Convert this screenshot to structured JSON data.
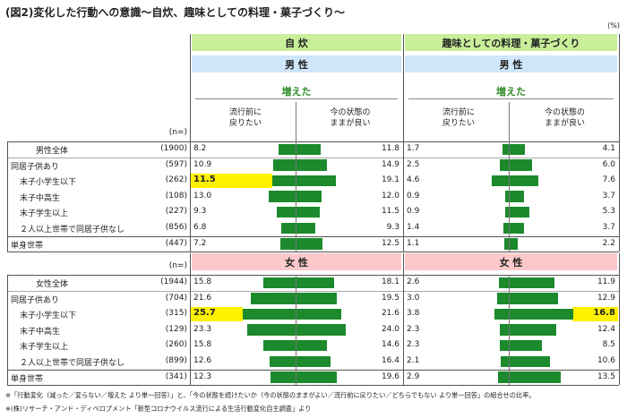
{
  "title": "(図2)変化した行動への意識～自炊、趣味としての料理・菓子づくり～",
  "unit": "(%)",
  "n_label": "(n=)",
  "increased_label": "増えた",
  "subheads": {
    "left": [
      "流行前に",
      "戻りたい"
    ],
    "right": [
      "今の状態の",
      "ままが良い"
    ]
  },
  "colors": {
    "bar": "#1c8a2c",
    "highlight": "#fff200",
    "panel_header": "#c9ef9b",
    "male_header": "#cfe6fb",
    "female_header": "#fbc9c9"
  },
  "chart_data": {
    "type": "bar",
    "panels": [
      "自 炊",
      "趣味としての料理・菓子づくり"
    ],
    "series_headings": [
      "流行前に戻りたい",
      "今の状態のままが良い"
    ],
    "groups": [
      {
        "name": "男 性",
        "rows": [
          {
            "label": "男性全体",
            "n": "(1900)",
            "cook": [
              8.2,
              11.8
            ],
            "hobby": [
              1.7,
              4.1
            ]
          },
          {
            "label": "同居子供あり",
            "n": "(597)",
            "cook": [
              10.9,
              14.9
            ],
            "hobby": [
              2.5,
              6.0
            ]
          },
          {
            "label": "末子小学生以下",
            "n": "(262)",
            "cook": [
              11.5,
              19.1
            ],
            "hobby": [
              4.6,
              7.6
            ],
            "highlight": "cook_left"
          },
          {
            "label": "末子中高生",
            "n": "(108)",
            "cook": [
              13.0,
              12.0
            ],
            "hobby": [
              0.9,
              3.7
            ]
          },
          {
            "label": "末子学生以上",
            "n": "(227)",
            "cook": [
              9.3,
              11.5
            ],
            "hobby": [
              0.9,
              5.3
            ]
          },
          {
            "label": "２人以上世帯で同居子供なし",
            "n": "(856)",
            "cook": [
              6.8,
              9.3
            ],
            "hobby": [
              1.4,
              3.7
            ]
          },
          {
            "label": "単身世帯",
            "n": "(447)",
            "cook": [
              7.2,
              12.5
            ],
            "hobby": [
              1.1,
              2.2
            ]
          }
        ]
      },
      {
        "name": "女 性",
        "rows": [
          {
            "label": "女性全体",
            "n": "(1944)",
            "cook": [
              15.8,
              18.1
            ],
            "hobby": [
              2.6,
              11.9
            ]
          },
          {
            "label": "同居子供あり",
            "n": "(704)",
            "cook": [
              21.6,
              19.5
            ],
            "hobby": [
              3.0,
              12.9
            ]
          },
          {
            "label": "末子小学生以下",
            "n": "(315)",
            "cook": [
              25.7,
              21.6
            ],
            "hobby": [
              3.8,
              16.8
            ],
            "highlight": "cook_left,hobby_right"
          },
          {
            "label": "末子中高生",
            "n": "(129)",
            "cook": [
              23.3,
              24.0
            ],
            "hobby": [
              2.3,
              12.4
            ]
          },
          {
            "label": "末子学生以上",
            "n": "(260)",
            "cook": [
              15.8,
              14.6
            ],
            "hobby": [
              2.3,
              8.5
            ]
          },
          {
            "label": "２人以上世帯で同居子供なし",
            "n": "(899)",
            "cook": [
              12.6,
              16.4
            ],
            "hobby": [
              2.1,
              10.6
            ]
          },
          {
            "label": "単身世帯",
            "n": "(341)",
            "cook": [
              12.3,
              19.6
            ],
            "hobby": [
              2.9,
              13.5
            ]
          }
        ]
      }
    ]
  },
  "footnotes": [
    "※「行動変化（減った／変らない／増えた より単一回答）」と、「今の状態を続けたいか（今の状態のままがよい／流行前に戻りたい／どちらでもない より単一回答」の組合せの比率。",
    "※(株)リサーチ・アンド・ディベロプメント「新型コロナウイルス流行による生活行動変化自主調査」より"
  ]
}
